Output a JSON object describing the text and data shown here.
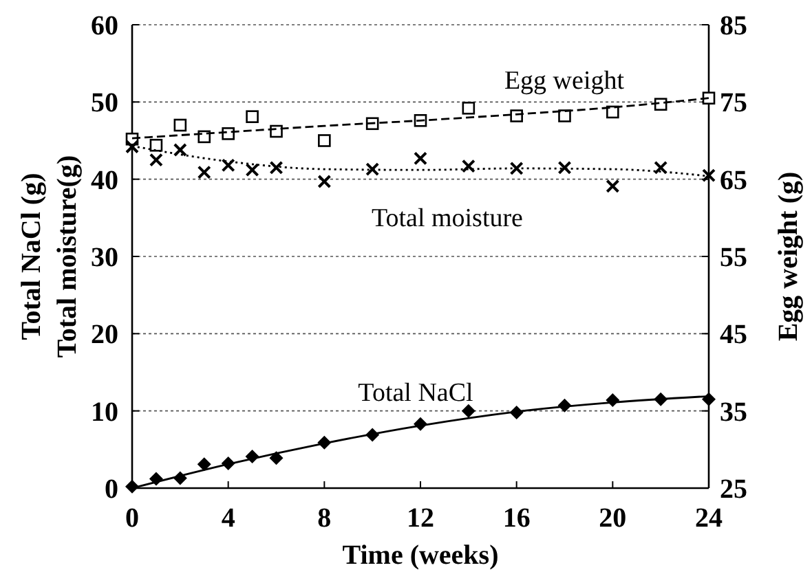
{
  "chart_data": {
    "type": "scatter",
    "xlabel": "Time (weeks)",
    "ylabel": "Total NaCl (g)\nTotal moisture(g)",
    "y2label": "Egg weight (g)",
    "xlim": [
      0,
      24
    ],
    "xticks": [
      0,
      4,
      8,
      12,
      16,
      20,
      24
    ],
    "ylim": [
      0,
      60
    ],
    "yticks": [
      0,
      10,
      20,
      30,
      40,
      50,
      60
    ],
    "y2lim": [
      25,
      85
    ],
    "y2ticks": [
      25,
      35,
      45,
      55,
      65,
      75,
      85
    ],
    "grid": "y",
    "series": [
      {
        "axis": "y2",
        "marker": "square",
        "color": "#000000",
        "x": [
          0,
          1,
          2,
          3,
          4,
          5,
          6,
          8,
          10,
          12,
          14,
          16,
          18,
          20,
          22,
          24
        ],
        "values": [
          70.2,
          69.4,
          72,
          70.5,
          70.9,
          73.1,
          71.2,
          70,
          72.2,
          72.6,
          74.2,
          73.2,
          73.2,
          73.7,
          74.7,
          75.5
        ]
      },
      {
        "type": "line",
        "axis": "y2",
        "line_style": "dashed",
        "color": "#000000",
        "x": [
          0,
          4,
          8,
          12,
          16,
          20,
          24
        ],
        "values": [
          70.3,
          71.1,
          71.9,
          72.6,
          73.4,
          74.3,
          75.5
        ]
      },
      {
        "marker": "cross",
        "color": "#000000",
        "x": [
          0,
          1,
          2,
          3,
          4,
          5,
          6,
          8,
          10,
          12,
          14,
          16,
          18,
          20,
          22,
          24
        ],
        "values": [
          44.2,
          42.5,
          43.8,
          40.9,
          41.8,
          41.2,
          41.5,
          39.7,
          41.3,
          42.7,
          41.7,
          41.4,
          41.5,
          39.1,
          41.5,
          40.5
        ]
      },
      {
        "type": "line",
        "line_style": "dotted",
        "color": "#000000",
        "x": [
          0,
          4,
          8,
          12,
          16,
          20,
          24
        ],
        "values": [
          44.3,
          42.3,
          41.3,
          41.2,
          41.4,
          41.3,
          40.4
        ]
      },
      {
        "marker": "diamond",
        "color": "#000000",
        "x": [
          0,
          1,
          2,
          3,
          4,
          5,
          6,
          8,
          10,
          12,
          14,
          16,
          18,
          20,
          22,
          24
        ],
        "values": [
          0.2,
          1.2,
          1.3,
          3.1,
          3.2,
          4.1,
          3.9,
          5.9,
          6.9,
          8.3,
          10,
          9.8,
          10.7,
          11.4,
          11.5,
          11.5
        ]
      },
      {
        "type": "line",
        "line_style": "solid",
        "color": "#000000",
        "x": [
          0,
          4,
          8,
          12,
          16,
          20,
          24
        ],
        "values": [
          0,
          3.1,
          5.8,
          8.1,
          9.9,
          11.1,
          11.9
        ]
      }
    ],
    "annotations": [
      "Egg weight",
      "Total moisture",
      "Total NaCl"
    ]
  }
}
